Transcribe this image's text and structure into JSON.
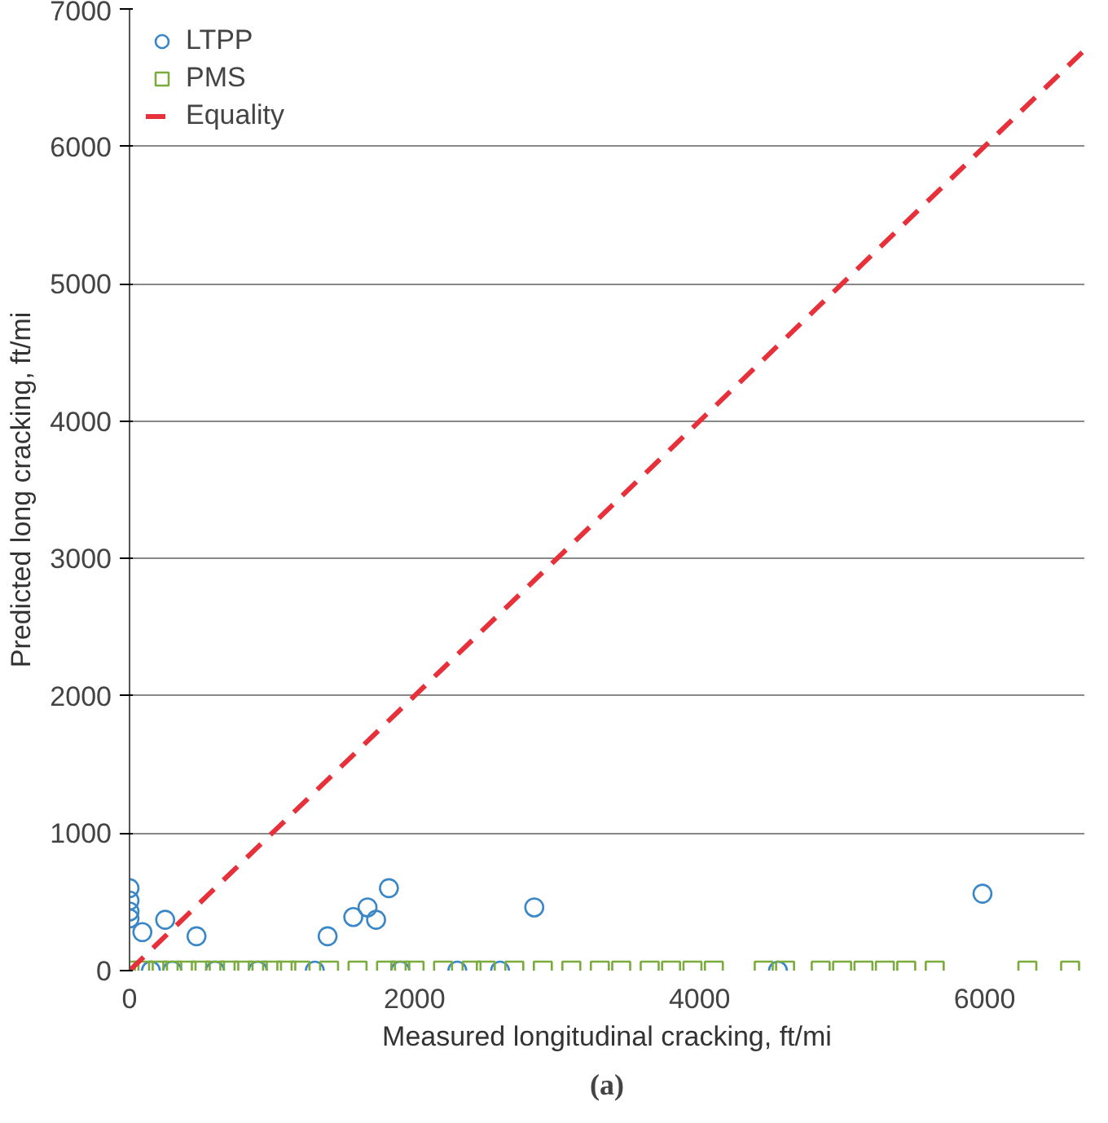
{
  "chart_data": {
    "type": "scatter",
    "xlabel": "Measured longitudinal cracking, ft/mi",
    "ylabel": "Predicted long cracking, ft/mi",
    "xlim": [
      0,
      6700
    ],
    "ylim": [
      0,
      7000
    ],
    "xticks": [
      0,
      2000,
      4000,
      6000
    ],
    "yticks": [
      0,
      1000,
      2000,
      3000,
      4000,
      5000,
      6000,
      7000
    ],
    "grid": "y",
    "legend": "top left",
    "annotations": [
      "(a)"
    ],
    "series": [
      {
        "name": "LTPP",
        "color": "#3a87c8",
        "marker": "circle",
        "x": [
          0,
          0,
          0,
          0,
          90,
          250,
          470,
          1390,
          1570,
          1670,
          1730,
          1820,
          2840,
          5985,
          150,
          300,
          600,
          900,
          1300,
          1900,
          2300,
          2600,
          4550
        ],
        "values": [
          600,
          510,
          430,
          380,
          280,
          370,
          250,
          250,
          390,
          460,
          370,
          600,
          460,
          560,
          0,
          0,
          0,
          0,
          0,
          0,
          0,
          0,
          0
        ]
      },
      {
        "name": "PMS",
        "color": "#7aab3c",
        "marker": "square",
        "x": [
          0,
          100,
          200,
          300,
          400,
          500,
          600,
          700,
          800,
          900,
          1000,
          1100,
          1200,
          1400,
          1600,
          1800,
          1900,
          2000,
          2200,
          2400,
          2500,
          2700,
          2900,
          3100,
          3300,
          3450,
          3650,
          3800,
          3950,
          4100,
          4450,
          4600,
          4850,
          5000,
          5150,
          5300,
          5450,
          5650,
          6300,
          6600
        ],
        "values": [
          0,
          0,
          0,
          0,
          0,
          0,
          0,
          0,
          0,
          0,
          0,
          0,
          0,
          0,
          0,
          0,
          0,
          0,
          0,
          0,
          0,
          0,
          0,
          0,
          0,
          0,
          0,
          0,
          0,
          0,
          0,
          0,
          0,
          0,
          0,
          0,
          0,
          0,
          0,
          0
        ]
      },
      {
        "name": "Equality",
        "type": "line",
        "line_style": "dashed",
        "color": "#e8303a",
        "x": [
          0,
          6700
        ],
        "values": [
          0,
          6700
        ]
      }
    ]
  }
}
